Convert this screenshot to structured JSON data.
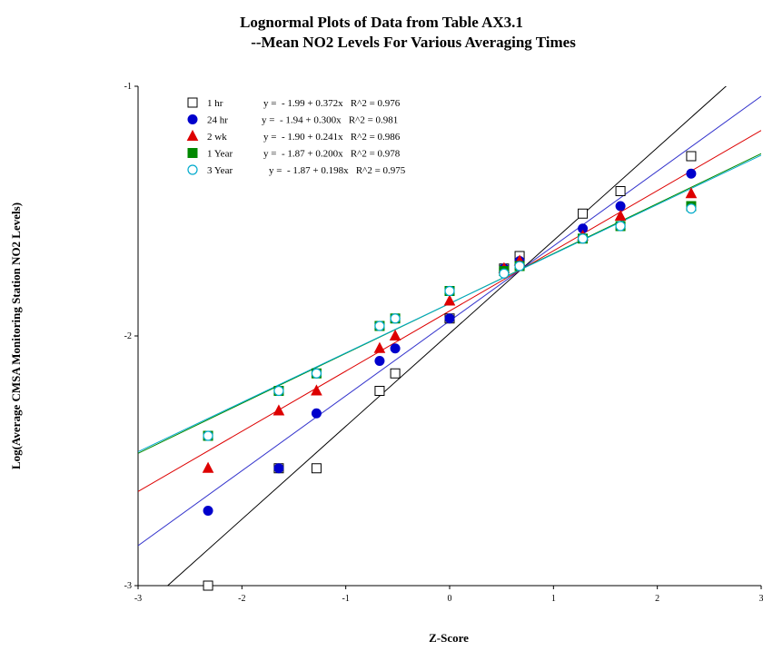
{
  "chart_data": {
    "type": "scatter",
    "title_lines": [
      "Lognormal Plots of Data from Table AX3.1",
      "--Mean NO2 Levels For Various Averaging Times"
    ],
    "xlabel": "Z-Score",
    "ylabel": "Log(Average CMSA Monitoring Station NO2 Levels)",
    "xlim": [
      -3,
      3
    ],
    "ylim": [
      -3,
      -1
    ],
    "x_ticks": [
      -3,
      -2,
      -1,
      0,
      1,
      2,
      3
    ],
    "x_tick_labels": [
      "-3",
      "-2",
      "-1",
      "0",
      "1",
      "2",
      "3"
    ],
    "y_ticks": [
      -3,
      -2,
      -1
    ],
    "y_tick_labels": [
      "-3",
      "-2",
      "-1"
    ],
    "grid": false,
    "legend_position": "top-left",
    "series": [
      {
        "name": "1 hr",
        "marker": "square-open",
        "color": "#000000",
        "line_color": "#000000",
        "equation": "y =  - 1.99 + 0.372x   R^2 = 0.976",
        "intercept": -1.99,
        "slope": 0.372,
        "x": [
          -2.326,
          -1.645,
          -1.282,
          -0.674,
          -0.524,
          0.0,
          0.524,
          0.674,
          1.282,
          1.645,
          2.326
        ],
        "y": [
          -3.0,
          -2.53,
          -2.53,
          -2.22,
          -2.15,
          -1.93,
          -1.73,
          -1.68,
          -1.51,
          -1.42,
          -1.28
        ]
      },
      {
        "name": "24 hr",
        "marker": "circle-filled",
        "color": "#0000cc",
        "line_color": "#3333cc",
        "equation": "y =  - 1.94 + 0.300x   R^2 = 0.981",
        "intercept": -1.94,
        "slope": 0.3,
        "x": [
          -2.326,
          -1.645,
          -1.282,
          -0.674,
          -0.524,
          0.0,
          0.524,
          0.674,
          1.282,
          1.645,
          2.326
        ],
        "y": [
          -2.7,
          -2.53,
          -2.31,
          -2.1,
          -2.05,
          -1.93,
          -1.73,
          -1.7,
          -1.57,
          -1.48,
          -1.35
        ]
      },
      {
        "name": "2 wk",
        "marker": "triangle-filled",
        "color": "#dd0000",
        "line_color": "#dd0000",
        "equation": "y =  - 1.90 + 0.241x   R^2 = 0.986",
        "intercept": -1.9,
        "slope": 0.241,
        "x": [
          -2.326,
          -1.645,
          -1.282,
          -0.674,
          -0.524,
          0.0,
          0.524,
          0.674,
          1.282,
          1.645,
          2.326
        ],
        "y": [
          -2.53,
          -2.3,
          -2.22,
          -2.05,
          -2.0,
          -1.86,
          -1.73,
          -1.7,
          -1.6,
          -1.52,
          -1.43
        ]
      },
      {
        "name": "1 Year",
        "marker": "square-filled",
        "color": "#008800",
        "line_color": "#008800",
        "equation": "y =  - 1.87 + 0.200x   R^2 = 0.978",
        "intercept": -1.87,
        "slope": 0.2,
        "x": [
          -2.326,
          -1.645,
          -1.282,
          -0.674,
          -0.524,
          0.0,
          0.524,
          0.674,
          1.282,
          1.645,
          2.326
        ],
        "y": [
          -2.4,
          -2.22,
          -2.15,
          -1.96,
          -1.93,
          -1.82,
          -1.74,
          -1.72,
          -1.61,
          -1.56,
          -1.48
        ]
      },
      {
        "name": "3 Year",
        "marker": "circle-open",
        "color": "#00aacc",
        "line_color": "#00aacc",
        "equation": "y =  - 1.87 + 0.198x   R^2 = 0.975",
        "intercept": -1.87,
        "slope": 0.198,
        "x": [
          -2.326,
          -1.645,
          -1.282,
          -0.674,
          -0.524,
          0.0,
          0.524,
          0.674,
          1.282,
          1.645,
          2.326
        ],
        "y": [
          -2.4,
          -2.22,
          -2.15,
          -1.96,
          -1.93,
          -1.82,
          -1.75,
          -1.72,
          -1.61,
          -1.56,
          -1.49
        ]
      }
    ]
  }
}
